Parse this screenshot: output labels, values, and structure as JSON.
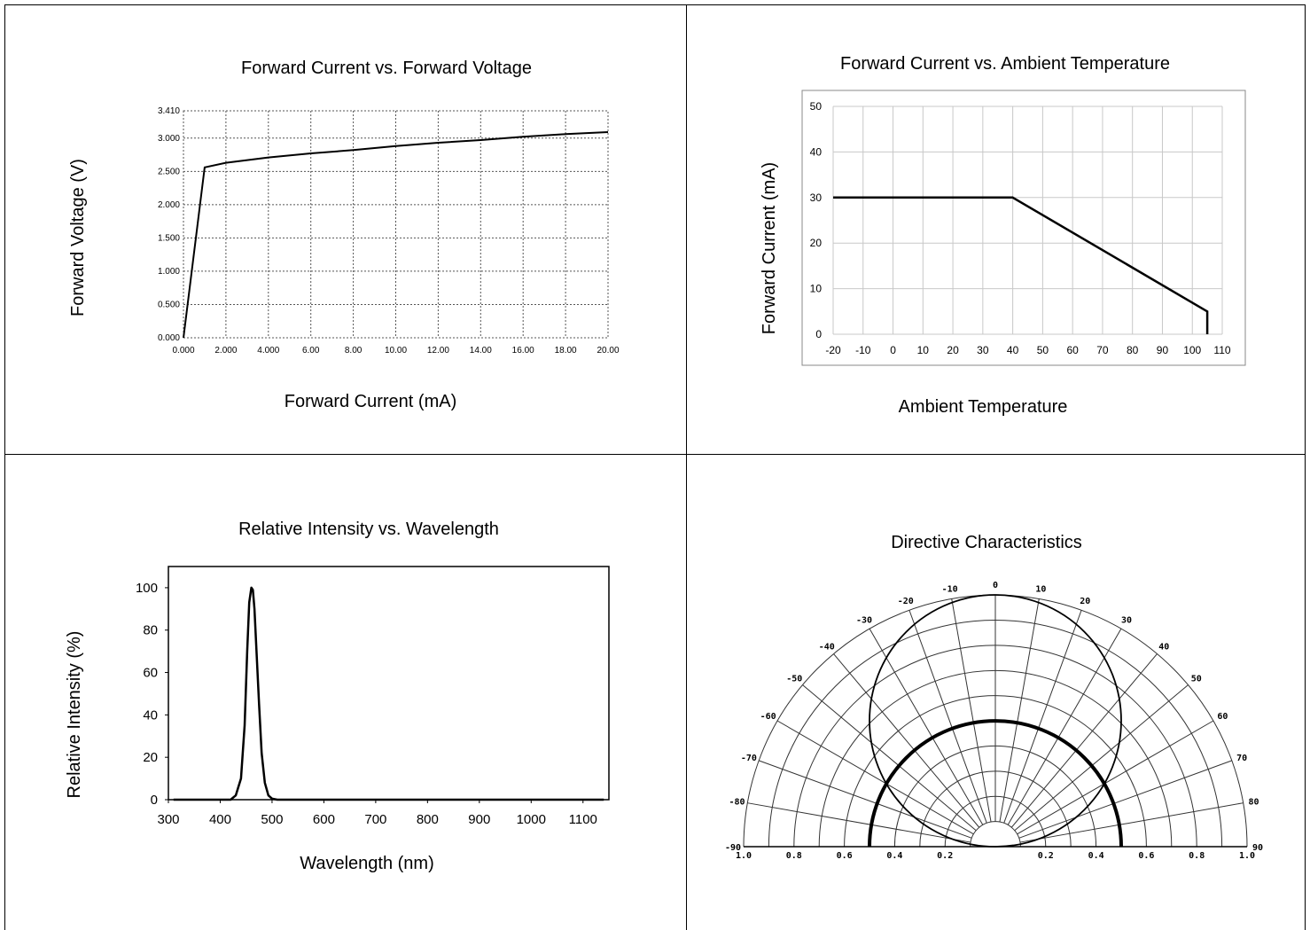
{
  "chart_data": [
    {
      "type": "line",
      "title": "Forward Current vs. Forward Voltage",
      "xlabel": "Forward Current (mA)",
      "ylabel": "Forward Voltage (V)",
      "x_ticks": [
        "0.000",
        "2.000",
        "4.000",
        "6.00",
        "8.00",
        "10.00",
        "12.00",
        "14.00",
        "16.00",
        "18.00",
        "20.00"
      ],
      "y_ticks": [
        "0.000",
        "0.500",
        "1.000",
        "1.500",
        "2.000",
        "2.500",
        "3.000",
        "3.410"
      ],
      "xlim": [
        0,
        20
      ],
      "ylim": [
        0,
        3.41
      ],
      "grid": true,
      "series": [
        {
          "x": [
            0,
            1,
            2,
            4,
            6,
            8,
            10,
            12,
            14,
            16,
            18,
            20
          ],
          "y": [
            0,
            2.56,
            2.63,
            2.71,
            2.77,
            2.82,
            2.88,
            2.93,
            2.97,
            3.02,
            3.06,
            3.09
          ]
        }
      ]
    },
    {
      "type": "line",
      "title": "Forward Current vs. Ambient Temperature",
      "xlabel": "Ambient Temperature",
      "ylabel": "Forward Current (mA)",
      "x_ticks": [
        "-20",
        "-10",
        "0",
        "10",
        "20",
        "30",
        "40",
        "50",
        "60",
        "70",
        "80",
        "90",
        "100",
        "110"
      ],
      "y_ticks": [
        "0",
        "10",
        "20",
        "30",
        "40",
        "50"
      ],
      "xlim": [
        -20,
        110
      ],
      "ylim": [
        0,
        50
      ],
      "grid": true,
      "series": [
        {
          "x": [
            -20,
            40,
            105,
            105
          ],
          "y": [
            30,
            30,
            5,
            0
          ]
        }
      ]
    },
    {
      "type": "line",
      "title": "Relative Intensity vs. Wavelength",
      "xlabel": "Wavelength (nm)",
      "ylabel": "Relative Intensity (%)",
      "x_ticks": [
        "300",
        "400",
        "500",
        "600",
        "700",
        "800",
        "900",
        "1000",
        "1100"
      ],
      "y_ticks": [
        "0",
        "20",
        "40",
        "60",
        "80",
        "100"
      ],
      "xlim": [
        300,
        1150
      ],
      "ylim": [
        0,
        110
      ],
      "grid": false,
      "series": [
        {
          "x": [
            310,
            420,
            430,
            440,
            447,
            452,
            456,
            460,
            463,
            466,
            470,
            475,
            480,
            486,
            493,
            500,
            510,
            520,
            1140
          ],
          "y": [
            0,
            0,
            2,
            10,
            35,
            70,
            93,
            100,
            99,
            90,
            70,
            45,
            22,
            8,
            2,
            0.5,
            0,
            0,
            0
          ]
        }
      ]
    },
    {
      "type": "polar",
      "title": "Directive Characteristics",
      "angle_ticks": [
        "-90",
        "-80",
        "-70",
        "-60",
        "-50",
        "-40",
        "-30",
        "-20",
        "-10",
        "0",
        "10",
        "20",
        "30",
        "40",
        "50",
        "60",
        "70",
        "80",
        "90"
      ],
      "radius_ticks_left": [
        "1.0",
        "0.8",
        "0.6",
        "0.4",
        "0.2"
      ],
      "radius_ticks_right": [
        "0.2",
        "0.4",
        "0.6",
        "0.8",
        "1.0"
      ],
      "series": [
        {
          "name": "",
          "shape": "circle",
          "diameter": 1.0
        },
        {
          "name": "",
          "shape": "semicircle",
          "radius": 0.5
        }
      ]
    }
  ]
}
